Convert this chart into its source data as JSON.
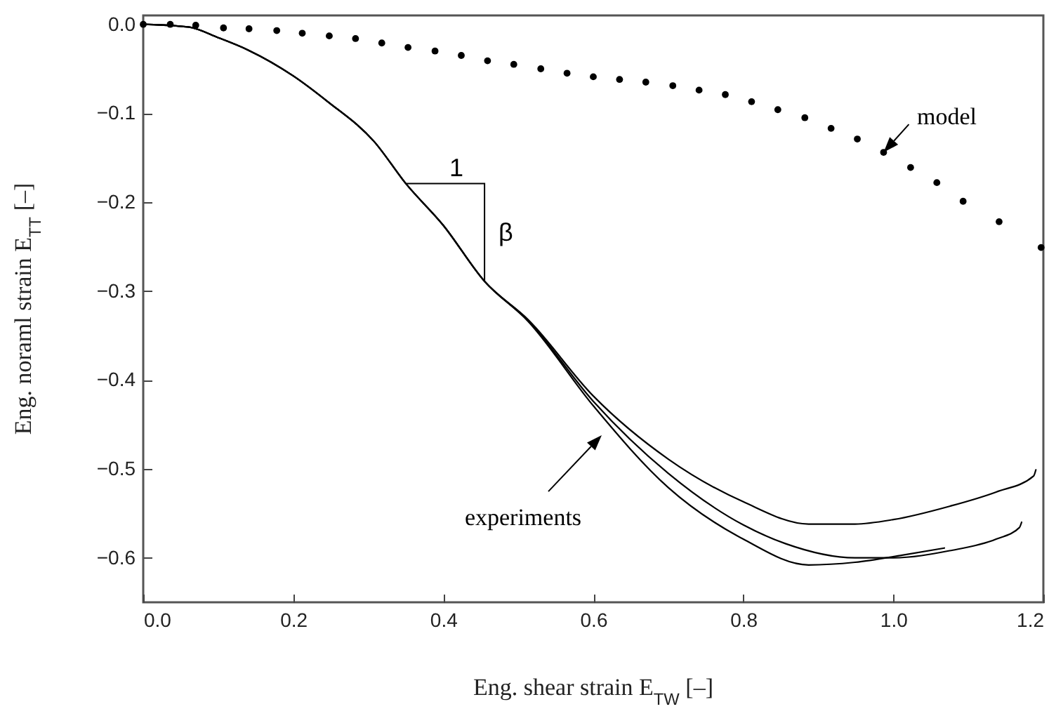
{
  "chart_data": {
    "type": "line",
    "xlabel": "Eng. shear strain E$_{TW}$ [–]",
    "ylabel": "Eng. noraml strain E$_{TT}$ [–]",
    "xlim": [
      0,
      1.2
    ],
    "xticks": [
      {
        "value": 0,
        "label": "0.0"
      },
      0.2,
      0.4,
      0.6,
      0.8,
      {
        "value": 1,
        "label": "1.0"
      },
      1.2
    ],
    "ylim": [
      -0.65,
      0.01
    ],
    "yticks": [
      {
        "value": 0,
        "label": "0.0"
      },
      -0.1,
      -0.2,
      -0.3,
      -0.4,
      -0.5,
      -0.6
    ],
    "grid": false,
    "series": [
      {
        "type": "scatter",
        "marker": "circle",
        "color": "#000000",
        "x": [
          0,
          0.036,
          0.07,
          0.107,
          0.141,
          0.178,
          0.212,
          0.248,
          0.283,
          0.318,
          0.353,
          0.389,
          0.424,
          0.459,
          0.494,
          0.53,
          0.565,
          0.6,
          0.635,
          0.67,
          0.706,
          0.741,
          0.776,
          0.811,
          0.846,
          0.882,
          0.917,
          0.952,
          0.987,
          1.023,
          1.058,
          1.093,
          1.141,
          1.197
        ],
        "values": [
          0,
          0,
          -0.001,
          -0.004,
          -0.005,
          -0.007,
          -0.01,
          -0.013,
          -0.016,
          -0.021,
          -0.026,
          -0.03,
          -0.035,
          -0.041,
          -0.045,
          -0.05,
          -0.055,
          -0.059,
          -0.062,
          -0.065,
          -0.069,
          -0.074,
          -0.079,
          -0.087,
          -0.096,
          -0.105,
          -0.117,
          -0.129,
          -0.144,
          -0.161,
          -0.178,
          -0.199,
          -0.222,
          -0.251
        ]
      },
      {
        "color": "#000000",
        "x": [
          0,
          0.06,
          0.1,
          0.14,
          0.2,
          0.246,
          0.308,
          0.35,
          0.4,
          0.455,
          0.513,
          0.6,
          0.7,
          0.8,
          0.887,
          0.949,
          1.0,
          1.075,
          1.137,
          1.187,
          1.19
        ],
        "values": [
          0,
          -0.003,
          -0.015,
          -0.029,
          -0.058,
          -0.087,
          -0.132,
          -0.179,
          -0.226,
          -0.289,
          -0.332,
          -0.418,
          -0.489,
          -0.537,
          -0.562,
          -0.562,
          -0.557,
          -0.542,
          -0.526,
          -0.508,
          -0.501
        ]
      },
      {
        "color": "#000000",
        "x": [
          0,
          0.06,
          0.1,
          0.14,
          0.2,
          0.246,
          0.308,
          0.35,
          0.4,
          0.455,
          0.513,
          0.6,
          0.7,
          0.8,
          0.856,
          0.949,
          1.0,
          1.075,
          1.137,
          1.168,
          1.171
        ],
        "values": [
          0,
          -0.003,
          -0.015,
          -0.029,
          -0.058,
          -0.087,
          -0.132,
          -0.179,
          -0.226,
          -0.289,
          -0.333,
          -0.424,
          -0.505,
          -0.563,
          -0.584,
          -0.6,
          -0.6,
          -0.592,
          -0.579,
          -0.566,
          -0.56
        ]
      },
      {
        "color": "#000000",
        "x": [
          0,
          0.06,
          0.1,
          0.14,
          0.2,
          0.246,
          0.308,
          0.35,
          0.4,
          0.455,
          0.513,
          0.6,
          0.7,
          0.8,
          0.887,
          0.949,
          1.012,
          1.068
        ],
        "values": [
          0,
          -0.003,
          -0.015,
          -0.029,
          -0.058,
          -0.087,
          -0.132,
          -0.179,
          -0.226,
          -0.289,
          -0.334,
          -0.429,
          -0.521,
          -0.579,
          -0.608,
          -0.605,
          -0.597,
          -0.589
        ]
      }
    ],
    "annotations": [
      "1",
      "β",
      {
        "text": "model",
        "x": 0.987,
        "y": -0.144
      },
      "experiments"
    ]
  }
}
